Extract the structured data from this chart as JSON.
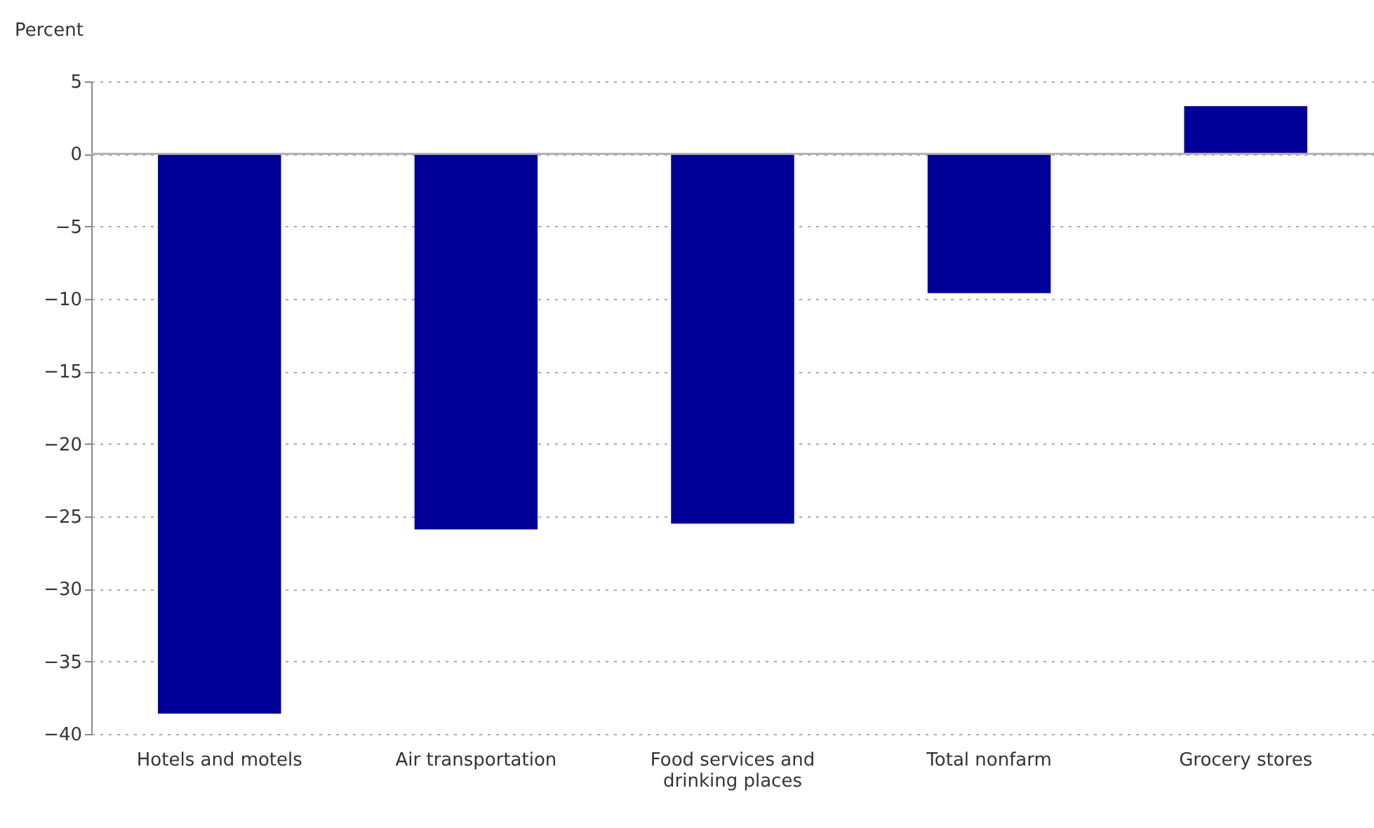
{
  "chart_data": {
    "type": "bar",
    "ylabel": "Percent",
    "categories": [
      "Hotels and motels",
      "Air transportation",
      "Food services and drinking places",
      "Total nonfarm",
      "Grocery stores"
    ],
    "values": [
      -38.6,
      -25.9,
      -25.5,
      -9.6,
      3.3
    ],
    "color": "#000099",
    "ylim": [
      -40,
      5
    ],
    "yticks": [
      5,
      0,
      -5,
      -10,
      -15,
      -20,
      -25,
      -30,
      -35,
      -40
    ],
    "grid": "y",
    "ref_lines": [
      {
        "axis": "y",
        "value": 0,
        "color": "#b0b0b0"
      }
    ]
  }
}
